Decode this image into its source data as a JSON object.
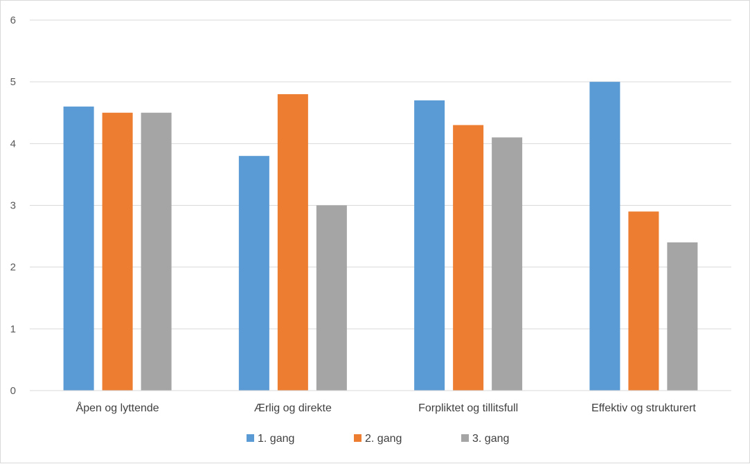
{
  "chart_data": {
    "type": "bar",
    "categories": [
      "Åpen og lyttende",
      "Ærlig og direkte",
      "Forpliktet og tillitsfull",
      "Effektiv og strukturert"
    ],
    "series": [
      {
        "name": "1. gang",
        "color": "#5b9bd5",
        "values": [
          4.6,
          3.8,
          4.7,
          5.0
        ]
      },
      {
        "name": "2. gang",
        "color": "#ed7d31",
        "values": [
          4.5,
          4.8,
          4.3,
          2.9
        ]
      },
      {
        "name": "3. gang",
        "color": "#a5a5a5",
        "values": [
          4.5,
          3.0,
          4.1,
          2.4
        ]
      }
    ],
    "yticks": [
      0,
      1,
      2,
      3,
      4,
      5,
      6
    ],
    "ylim": [
      0,
      6
    ],
    "grid": true,
    "legend": "bottom",
    "title": "",
    "xlabel": "",
    "ylabel": ""
  }
}
